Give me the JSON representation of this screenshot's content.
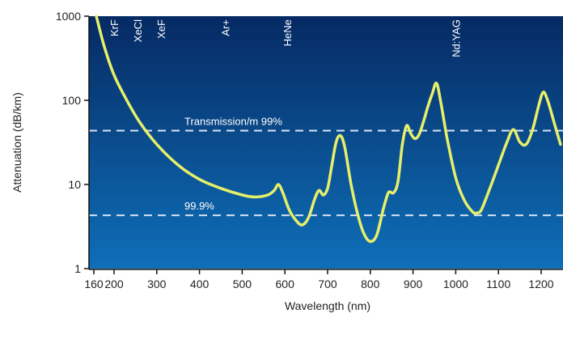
{
  "colors": {
    "plot_top": "#062a63",
    "plot_bottom": "#0e6fb8",
    "curve": "#e6ef6a",
    "dash": "#d7e3f2",
    "label": "#ffffff",
    "axis_text": "#222222"
  },
  "chart_data": {
    "type": "line",
    "xlabel": "Wavelength (nm)",
    "ylabel": "Attenuation (dB/km)",
    "x_ticks": [
      160,
      200,
      300,
      400,
      500,
      600,
      700,
      800,
      900,
      1000,
      1100,
      1200
    ],
    "x_tick_labels": [
      "160",
      "200",
      "300",
      "400",
      "500",
      "600",
      "700",
      "800",
      "900",
      "1000",
      "1100",
      "1200"
    ],
    "y_scale": "log",
    "ylim": [
      1,
      1000
    ],
    "y_ticks": [
      1,
      10,
      100,
      1000
    ],
    "y_tick_labels": [
      "1",
      "10",
      "100",
      "1000"
    ],
    "grid": false,
    "laser_lines": [
      {
        "label": "KrF",
        "x": 200
      },
      {
        "label": "XeCl",
        "x": 255
      },
      {
        "label": "XeF",
        "x": 310
      },
      {
        "label": "Ar+",
        "x": 460
      },
      {
        "label": "HeNe",
        "x": 605
      },
      {
        "label": "Nd:YAG",
        "x": 1000
      }
    ],
    "reference_lines": [
      {
        "label": "Transmission/m 99%",
        "value": 43.6
      },
      {
        "label": "99.9%",
        "value": 4.3
      }
    ],
    "series": [
      {
        "x": [
          165,
          180,
          200,
          230,
          260,
          300,
          350,
          400,
          450,
          500,
          530,
          560,
          575,
          585,
          595,
          610,
          625,
          640,
          655,
          670,
          680,
          690,
          700,
          710,
          720,
          730,
          740,
          755,
          770,
          785,
          800,
          815,
          830,
          840,
          845,
          855,
          865,
          875,
          885,
          895,
          905,
          915,
          925,
          935,
          945,
          955,
          965,
          980,
          1000,
          1020,
          1040,
          1050,
          1060,
          1080,
          1100,
          1120,
          1135,
          1150,
          1165,
          1180,
          1195,
          1205,
          1215,
          1230,
          1245
        ],
        "y": [
          1000,
          450,
          200,
          100,
          55,
          30,
          17,
          11.5,
          9,
          7.5,
          7.1,
          7.5,
          8.5,
          10,
          8,
          5,
          3.8,
          3.3,
          4,
          6.8,
          8.5,
          7.5,
          9,
          17,
          32,
          38,
          28,
          10,
          4.5,
          2.6,
          2.1,
          2.5,
          5,
          7.5,
          8.2,
          8,
          11,
          30,
          50,
          40,
          35,
          40,
          57,
          85,
          120,
          160,
          95,
          35,
          12,
          6.5,
          4.7,
          4.6,
          5,
          9,
          17,
          32,
          45,
          32,
          30,
          45,
          90,
          125,
          100,
          55,
          30
        ]
      }
    ]
  }
}
